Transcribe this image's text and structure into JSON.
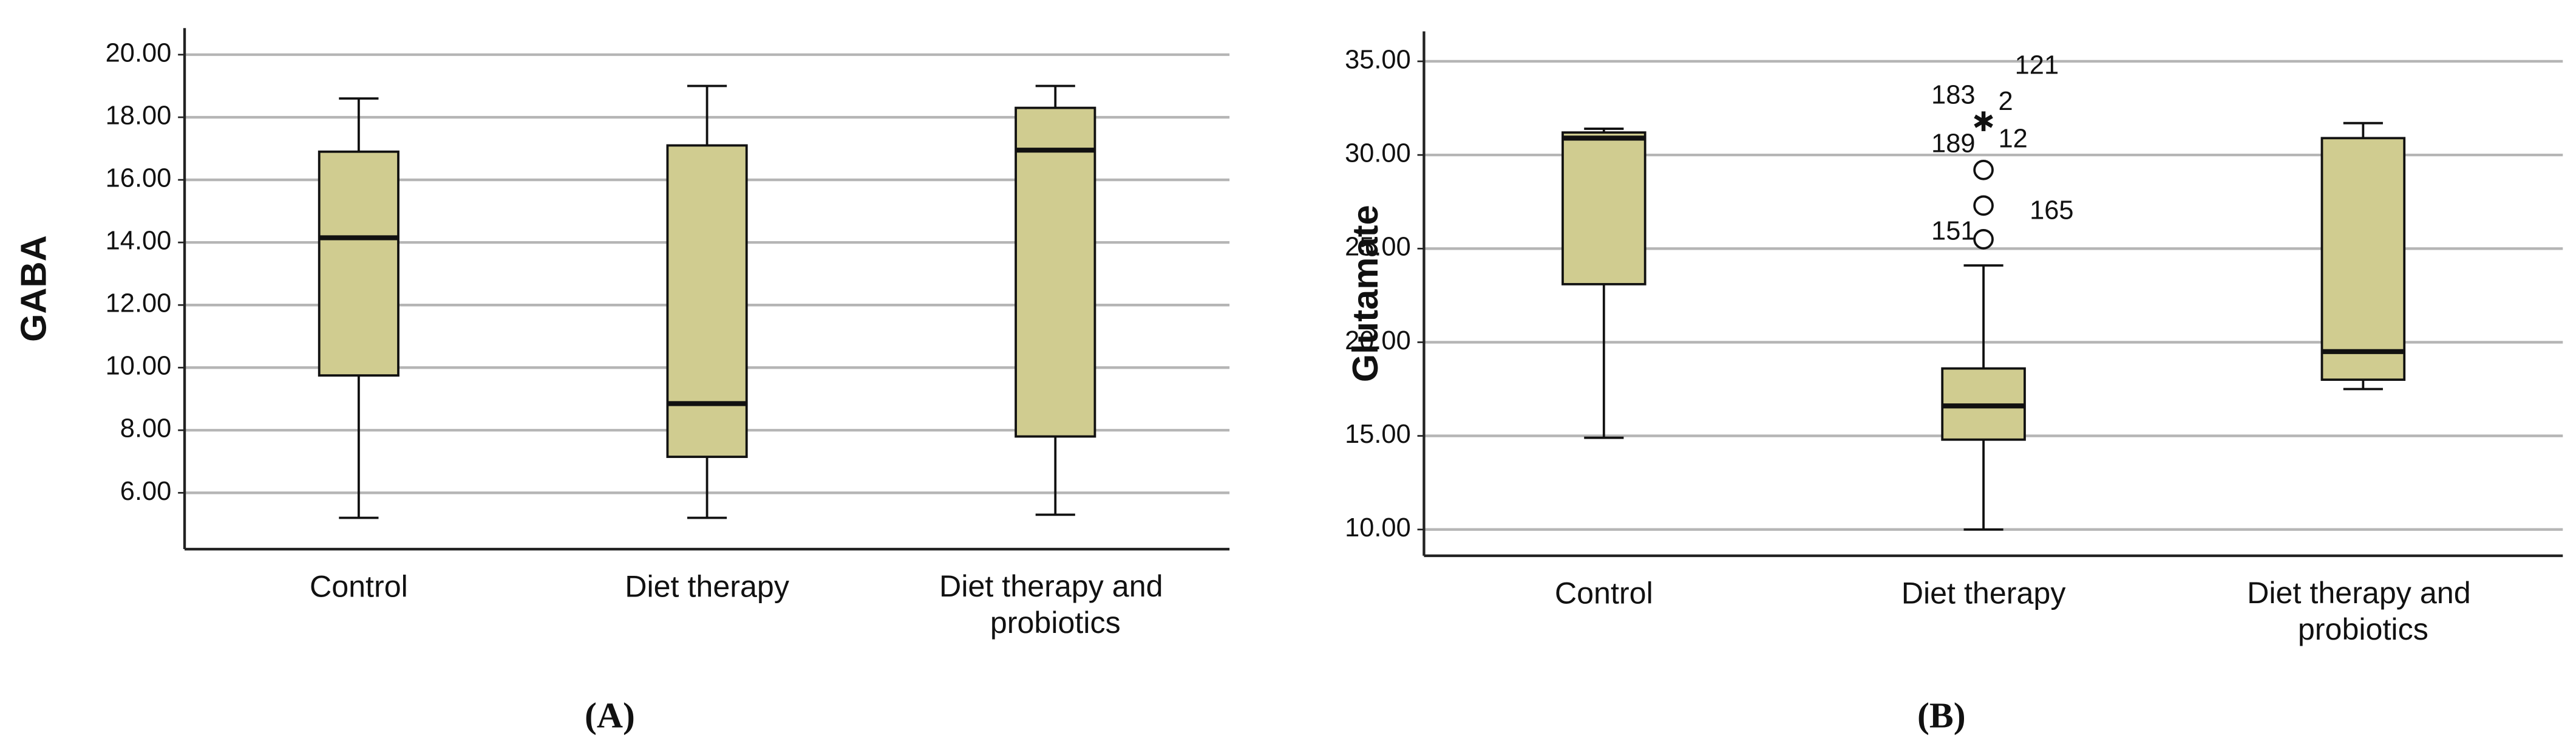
{
  "chart_data": [
    {
      "type": "boxplot",
      "panel_label": "(A)",
      "y_label": "GABA",
      "color": "#d0cc90",
      "grid": true,
      "categories": [
        "Control",
        "Diet therapy",
        "Diet therapy and probiotics"
      ],
      "boxes": [
        {
          "min": 5.2,
          "q1": 9.75,
          "median": 14.15,
          "q3": 16.9,
          "max": 18.6
        },
        {
          "min": 5.2,
          "q1": 7.15,
          "median": 8.85,
          "q3": 17.1,
          "max": 19.0
        },
        {
          "min": 5.3,
          "q1": 7.8,
          "median": 16.95,
          "q3": 18.3,
          "max": 19.0
        }
      ],
      "ylim": [
        4.2,
        20.85
      ],
      "yticks": [
        {
          "value": 6,
          "label": "6.00"
        },
        {
          "value": 8,
          "label": "8.00"
        },
        {
          "value": 10,
          "label": "10.00"
        },
        {
          "value": 12,
          "label": "12.00"
        },
        {
          "value": 14,
          "label": "14.00"
        },
        {
          "value": 16,
          "label": "16.00"
        },
        {
          "value": 18,
          "label": "18.00"
        },
        {
          "value": 20,
          "label": "20.00"
        }
      ]
    },
    {
      "type": "boxplot",
      "panel_label": "(B)",
      "y_label": "Glutamate",
      "color": "#d0cc90",
      "grid": true,
      "categories": [
        "Control",
        "Diet therapy",
        "Diet therapy and probiotics"
      ],
      "boxes": [
        {
          "min": 14.9,
          "q1": 23.1,
          "median": 30.9,
          "q3": 31.2,
          "max": 31.4
        },
        {
          "min": 10.0,
          "q1": 14.8,
          "median": 16.6,
          "q3": 18.6,
          "max": 24.1,
          "extremes": [
            {
              "value": 31.8,
              "labels": [
                "121",
                "183",
                "2"
              ]
            }
          ],
          "outliers": [
            {
              "value": 29.2,
              "labels": [
                "189",
                "12"
              ]
            },
            {
              "value": 27.3,
              "labels": [
                "165"
              ]
            },
            {
              "value": 25.5,
              "labels": [
                "151"
              ]
            }
          ]
        },
        {
          "min": 17.5,
          "q1": 18.0,
          "median": 19.5,
          "q3": 30.9,
          "max": 31.7
        }
      ],
      "ylim": [
        8.6,
        36.6
      ],
      "yticks": [
        {
          "value": 10,
          "label": "10.00"
        },
        {
          "value": 15,
          "label": "15.00"
        },
        {
          "value": 20,
          "label": "20.00"
        },
        {
          "value": 25,
          "label": "25.00"
        },
        {
          "value": 30,
          "label": "30.00"
        },
        {
          "value": 35,
          "label": "35.00"
        }
      ]
    }
  ]
}
